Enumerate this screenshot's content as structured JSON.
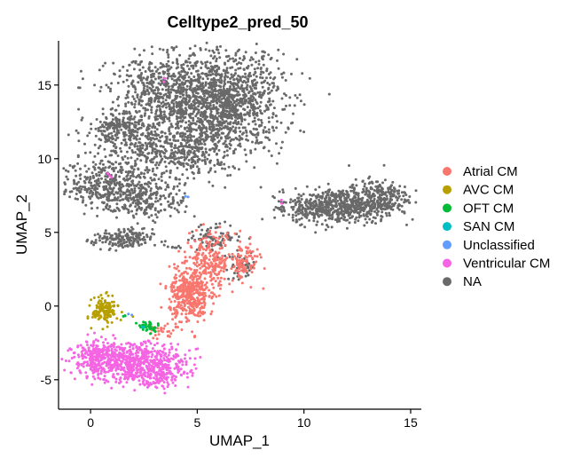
{
  "chart_data": {
    "type": "scatter",
    "title": "Celltype2_pred_50",
    "xlabel": "UMAP_1",
    "ylabel": "UMAP_2",
    "xlim": [
      -1.5,
      15.5
    ],
    "ylim": [
      -7,
      18
    ],
    "x_ticks": [
      0,
      5,
      10,
      15
    ],
    "x_tick_labels": [
      "0",
      "5",
      "10",
      "15"
    ],
    "y_ticks": [
      -5,
      0,
      5,
      10,
      15
    ],
    "y_tick_labels": [
      "-5",
      "0",
      "5",
      "10",
      "15"
    ],
    "grid": false,
    "legend_position": "right",
    "series": [
      {
        "name": "Atrial CM",
        "color": "#F8766D",
        "clusters": [
          {
            "cx": 4.6,
            "cy": 0.7,
            "sx": 0.45,
            "sy": 0.9,
            "n": 380
          },
          {
            "cx": 5.6,
            "cy": 3.0,
            "sx": 0.6,
            "sy": 1.0,
            "n": 250
          },
          {
            "cx": 7.2,
            "cy": 3.0,
            "sx": 0.35,
            "sy": 0.6,
            "n": 90
          },
          {
            "cx": 3.2,
            "cy": -1.8,
            "sx": 0.4,
            "sy": 0.25,
            "n": 25
          }
        ]
      },
      {
        "name": "AVC CM",
        "color": "#B79F00",
        "clusters": [
          {
            "cx": 0.7,
            "cy": -0.3,
            "sx": 0.3,
            "sy": 0.45,
            "n": 150
          }
        ]
      },
      {
        "name": "OFT CM",
        "color": "#00BA38",
        "clusters": [
          {
            "cx": 2.7,
            "cy": -1.4,
            "sx": 0.25,
            "sy": 0.2,
            "n": 35
          },
          {
            "cx": 1.6,
            "cy": -0.7,
            "sx": 0.1,
            "sy": 0.1,
            "n": 3
          }
        ]
      },
      {
        "name": "SAN CM",
        "color": "#00BFC4",
        "clusters": [
          {
            "cx": 2.6,
            "cy": -1.5,
            "sx": 0.15,
            "sy": 0.1,
            "n": 2
          }
        ]
      },
      {
        "name": "Unclassified",
        "color": "#619CFF",
        "clusters": [
          {
            "cx": 4.5,
            "cy": 7.4,
            "sx": 0.1,
            "sy": 0.1,
            "n": 2
          },
          {
            "cx": 1.8,
            "cy": -0.5,
            "sx": 0.1,
            "sy": 0.1,
            "n": 2
          }
        ]
      },
      {
        "name": "Ventricular CM",
        "color": "#F564E3",
        "clusters": [
          {
            "cx": 1.8,
            "cy": -3.8,
            "sx": 1.3,
            "sy": 0.65,
            "n": 700
          },
          {
            "cx": 0.3,
            "cy": -3.3,
            "sx": 0.5,
            "sy": 0.45,
            "n": 120
          },
          {
            "cx": 3.2,
            "cy": -4.6,
            "sx": 0.7,
            "sy": 0.5,
            "n": 120
          },
          {
            "cx": 0.8,
            "cy": 8.9,
            "sx": 0.1,
            "sy": 0.1,
            "n": 3
          },
          {
            "cx": 8.9,
            "cy": 7.1,
            "sx": 0.1,
            "sy": 0.1,
            "n": 2
          },
          {
            "cx": 3.4,
            "cy": 15.4,
            "sx": 0.1,
            "sy": 0.1,
            "n": 2
          }
        ]
      },
      {
        "name": "NA",
        "color": "#696969",
        "clusters": [
          {
            "cx": 6.2,
            "cy": 13.8,
            "sx": 1.4,
            "sy": 1.7,
            "n": 1300
          },
          {
            "cx": 3.5,
            "cy": 14.5,
            "sx": 1.3,
            "sy": 1.2,
            "n": 520
          },
          {
            "cx": 2.5,
            "cy": 11.0,
            "sx": 1.3,
            "sy": 1.2,
            "n": 380
          },
          {
            "cx": 4.8,
            "cy": 10.5,
            "sx": 0.9,
            "sy": 0.9,
            "n": 220
          },
          {
            "cx": 1.3,
            "cy": 12.1,
            "sx": 0.7,
            "sy": 0.5,
            "n": 140
          },
          {
            "cx": 0.6,
            "cy": 8.3,
            "sx": 1.0,
            "sy": 0.8,
            "n": 300
          },
          {
            "cx": 2.5,
            "cy": 7.3,
            "sx": 1.0,
            "sy": 0.7,
            "n": 260
          },
          {
            "cx": 1.5,
            "cy": 4.5,
            "sx": 0.7,
            "sy": 0.35,
            "n": 180
          },
          {
            "cx": 11.7,
            "cy": 6.8,
            "sx": 1.1,
            "sy": 0.6,
            "n": 500
          },
          {
            "cx": 13.5,
            "cy": 7.4,
            "sx": 0.7,
            "sy": 0.6,
            "n": 240
          },
          {
            "cx": 10.0,
            "cy": 6.6,
            "sx": 0.7,
            "sy": 0.4,
            "n": 100
          },
          {
            "cx": 5.9,
            "cy": 4.7,
            "sx": 0.6,
            "sy": 0.45,
            "n": 80
          },
          {
            "cx": 7.1,
            "cy": 2.7,
            "sx": 0.4,
            "sy": 0.5,
            "n": 40
          },
          {
            "cx": 4.0,
            "cy": 4.0,
            "sx": 0.15,
            "sy": 0.05,
            "n": 6
          }
        ]
      }
    ]
  }
}
